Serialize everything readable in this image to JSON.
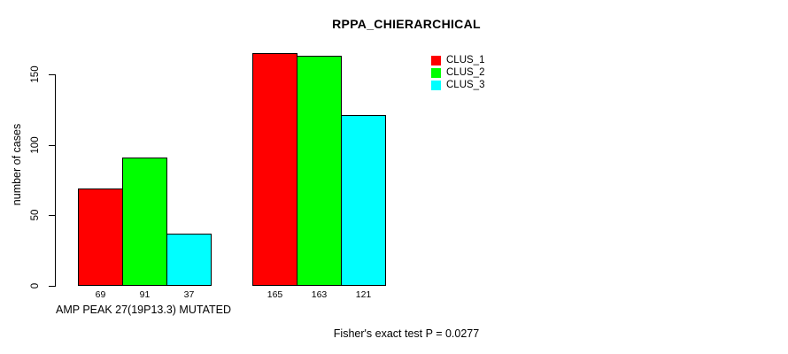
{
  "chart_data": {
    "type": "bar",
    "title": "RPPA_CHIERARCHICAL",
    "ylabel": "number of cases",
    "xlabel": "AMP PEAK 27(19P13.3) MUTATED",
    "annotation": "Fisher's exact test P = 0.0277",
    "ylim": [
      0,
      150
    ],
    "yticks": [
      0,
      50,
      100,
      150
    ],
    "n_groups": 2,
    "grid": false,
    "legend_position": "top-right",
    "series": [
      {
        "name": "CLUS_1",
        "color": "#FF0000",
        "values": [
          69,
          165
        ]
      },
      {
        "name": "CLUS_2",
        "color": "#00FF00",
        "values": [
          91,
          163
        ]
      },
      {
        "name": "CLUS_3",
        "color": "#00FFFF",
        "values": [
          37,
          121
        ]
      }
    ],
    "bar_value_labels": [
      [
        69,
        91,
        37
      ],
      [
        165,
        163,
        121
      ]
    ]
  }
}
